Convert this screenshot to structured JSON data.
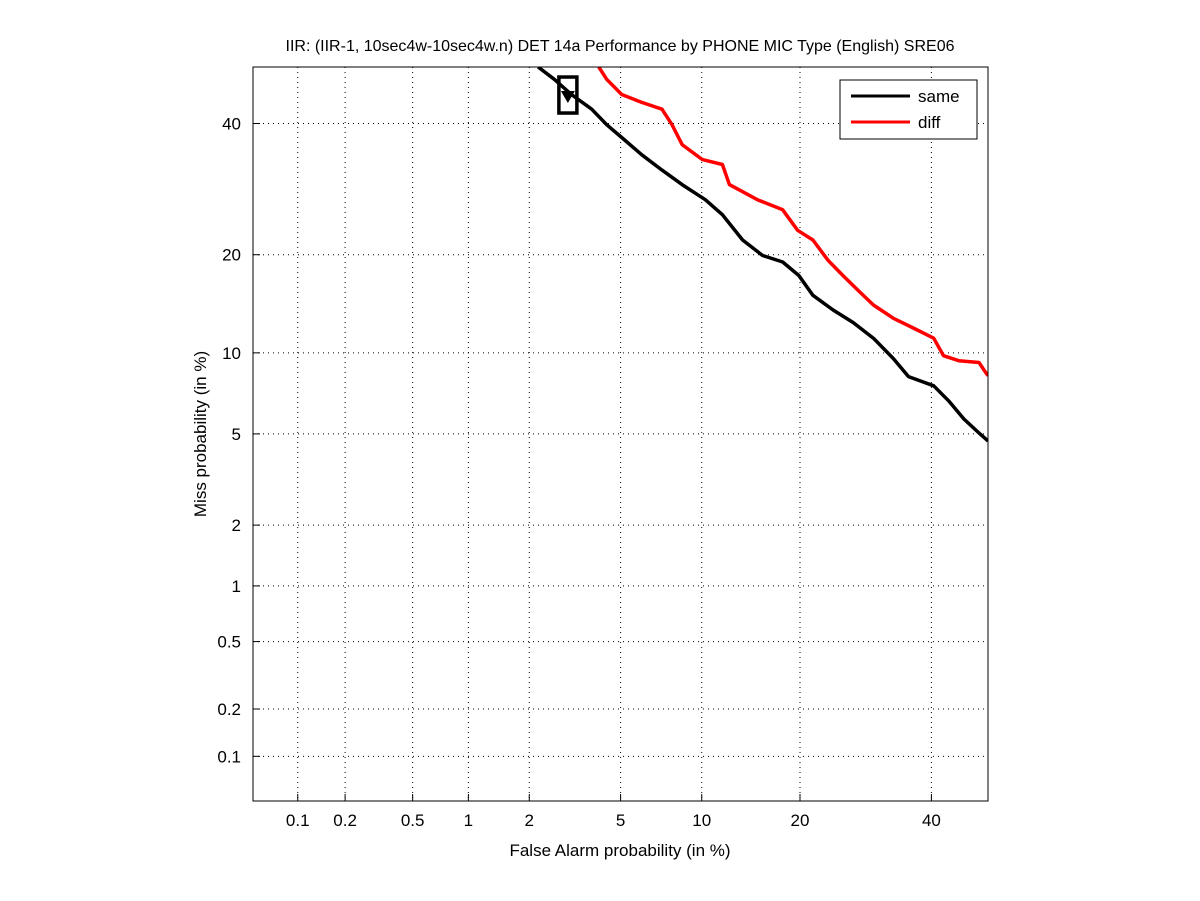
{
  "chart_data": {
    "type": "line",
    "scale": "probit (normal deviate)",
    "title": "IIR: (IIR-1, 10sec4w-10sec4w.n) DET 14a Performance by PHONE MIC Type (English) SRE06",
    "xlabel": "False Alarm probability (in %)",
    "ylabel": "Miss probability (in %)",
    "xlim": [
      0.05,
      50
    ],
    "ylim": [
      0.05,
      50
    ],
    "xticks": [
      0.1,
      0.2,
      0.5,
      1,
      2,
      5,
      10,
      20,
      40
    ],
    "xtick_labels": [
      "0.1",
      "0.2",
      "0.5",
      "1",
      "2",
      "5",
      "10",
      "20",
      "40"
    ],
    "yticks": [
      0.1,
      0.2,
      0.5,
      1,
      2,
      5,
      10,
      20,
      40
    ],
    "ytick_labels": [
      "0.1",
      "0.2",
      "0.5",
      "1",
      "2",
      "5",
      "10",
      "20",
      "40"
    ],
    "grid": true,
    "legend_position": "top-right",
    "series": [
      {
        "name": "same",
        "color": "#000000",
        "x": [
          2.2,
          2.61,
          3.11,
          3.8,
          4.39,
          5.05,
          6.06,
          7.22,
          8.54,
          10.28,
          11.72,
          13.6,
          15.65,
          17.9,
          19.85,
          21.65,
          24.4,
          27.3,
          30.4,
          33.6,
          36.1,
          40.4,
          43.0,
          45.7,
          48.4,
          50
        ],
        "y": [
          50,
          47.8,
          45.1,
          42.5,
          39.8,
          37.6,
          34.7,
          32.2,
          29.9,
          27.6,
          25.4,
          21.9,
          19.9,
          19.1,
          17.5,
          15.3,
          13.8,
          12.6,
          11.2,
          9.56,
          8.26,
          7.65,
          6.73,
          5.73,
          5.04,
          4.68
        ],
        "marker": {
          "type": "min-dcf-box",
          "x": 3.0,
          "y": 45
        }
      },
      {
        "name": "diff",
        "color": "#ff0000",
        "x": [
          4.07,
          4.39,
          5.05,
          6.06,
          7.22,
          7.86,
          8.54,
          10.05,
          11.72,
          12.35,
          15.1,
          17.9,
          19.7,
          21.65,
          23.7,
          25.8,
          28.1,
          30.4,
          33.6,
          36.9,
          40.4,
          42.1,
          44.8,
          48.4,
          49.6,
          50
        ],
        "y": [
          50,
          47.8,
          45.1,
          43.7,
          42.5,
          39.8,
          36.4,
          33.9,
          33.1,
          29.9,
          27.6,
          26.1,
          23.2,
          21.9,
          19.3,
          17.5,
          15.8,
          14.3,
          13.0,
          12.1,
          11.2,
          9.78,
          9.4,
          9.26,
          8.53,
          8.32
        ],
        "marker": {
          "type": "min-dcf-box",
          "x": 3.0,
          "y": 55
        }
      }
    ]
  }
}
